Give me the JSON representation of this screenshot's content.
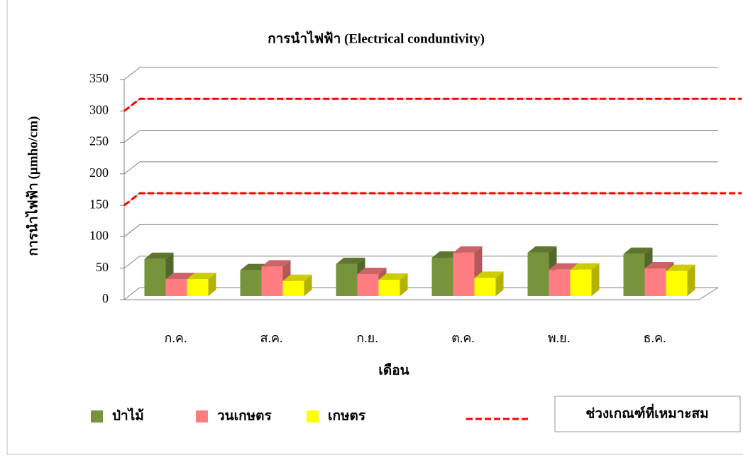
{
  "chart_data": {
    "type": "bar3d",
    "title": "การนำไฟฟ้า (Electrical conduntivity)",
    "y_label": "การนำไฟฟ้า (µmho/cm)",
    "x_label": "เดือน",
    "categories": [
      "ก.ค.",
      "ส.ค.",
      "ก.ย.",
      "ต.ค.",
      "พ.ย.",
      "ธ.ค."
    ],
    "series": [
      {
        "name": "ป่าไม้",
        "color": "#77933c",
        "values": [
          59,
          41,
          51,
          61,
          69,
          67
        ]
      },
      {
        "name": "วนเกษตร",
        "color": "#ff7c80",
        "values": [
          27,
          47,
          35,
          69,
          42,
          44
        ]
      },
      {
        "name": "เกษตร",
        "color": "#ffff00",
        "values": [
          27,
          24,
          26,
          29,
          42,
          40
        ]
      }
    ],
    "reference_lines": {
      "name": "ช่วงเกณฑ์ที่เหมาะสม",
      "color": "#ff0000",
      "values": [
        150,
        300
      ]
    },
    "ylim": [
      0,
      350
    ],
    "yticks": [
      0,
      50,
      100,
      150,
      200,
      250,
      300,
      350
    ],
    "grid": true
  }
}
